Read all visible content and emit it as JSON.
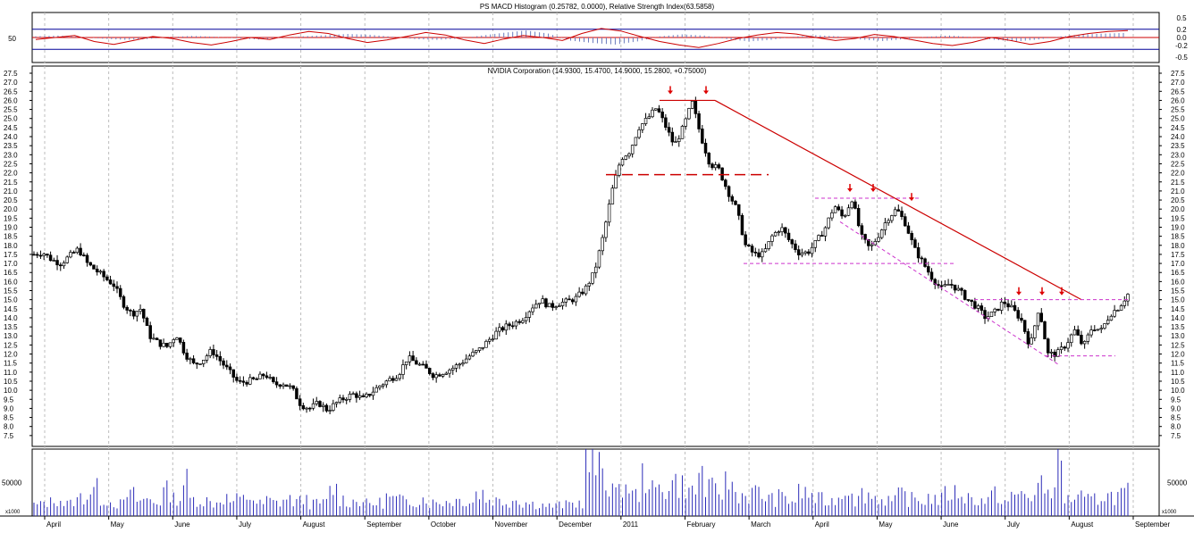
{
  "chart_data": [
    {
      "type": "line",
      "panel": "indicator",
      "title": "PS MACD Histogram (0.25782, 0.0000), Relative Strength Index(63.5858)",
      "left_label": "50",
      "right_ticks": [
        "0.5",
        "0.2",
        "0.0",
        "-0.2",
        "-0.5"
      ],
      "rsi_bands": [
        70,
        30
      ],
      "rsi_points": [
        46,
        50,
        54,
        42,
        36,
        44,
        52,
        48,
        40,
        35,
        42,
        50,
        46,
        55,
        62,
        58,
        48,
        40,
        45,
        52,
        60,
        55,
        45,
        38,
        47,
        54,
        50,
        44,
        58,
        68,
        63,
        52,
        42,
        35,
        30,
        38,
        48,
        55,
        60,
        57,
        50,
        44,
        48,
        56,
        52,
        45,
        38,
        34,
        40,
        50,
        44,
        36,
        42,
        52,
        58,
        62,
        64
      ],
      "histogram_points": [
        0.03,
        0.05,
        0.02,
        -0.03,
        -0.06,
        -0.04,
        0.01,
        0.04,
        0.02,
        -0.02,
        -0.05,
        -0.01,
        0.03,
        0.06,
        0.09,
        0.07,
        0.02,
        -0.04,
        -0.06,
        -0.03,
        0.05,
        0.12,
        0.18,
        0.1,
        -0.08,
        -0.14,
        -0.18,
        -0.1,
        0.03,
        0.08,
        0.05,
        -0.04,
        -0.1,
        -0.06,
        0.02,
        0.06,
        0.03,
        -0.05,
        -0.09,
        -0.04,
        0.02,
        0.05,
        0.01,
        -0.06,
        -0.1,
        -0.05,
        0.03,
        0.08,
        0.1,
        0.12
      ]
    },
    {
      "type": "candlestick",
      "panel": "price",
      "title": "NVIDIA Corporation (14.9300, 15.4700, 14.9000, 15.2800, +0.75000)",
      "ylim": [
        7.0,
        27.5
      ],
      "ticks_right": [
        "27.5",
        "27.0",
        "26.5",
        "26.0",
        "25.5",
        "25.0",
        "24.5",
        "24.0",
        "23.5",
        "23.0",
        "22.5",
        "22.0",
        "21.5",
        "21.0",
        "20.5",
        "20.0",
        "19.5",
        "19.0",
        "18.5",
        "18.0",
        "17.5",
        "17.0",
        "16.5",
        "16.0",
        "15.5",
        "15.0",
        "14.5",
        "14.0",
        "13.5",
        "13.0",
        "12.5",
        "12.0",
        "11.5",
        "11.0",
        "10.5",
        "10.0",
        "9.5",
        "9.0",
        "8.5",
        "8.0",
        "7.5"
      ],
      "ticks_left": [
        "27.5",
        "27.0",
        "26.5",
        "26.0",
        "25.5",
        "25.0",
        "24.5",
        "24.0",
        "23.5",
        "23.0",
        "22.5",
        "22.0",
        "21.5",
        "21.0",
        "20.5",
        "20.0",
        "19.5",
        "19.0",
        "18.5",
        "18.0",
        "17.5",
        "17.0",
        "16.5",
        "16.0",
        "15.5",
        "15.0",
        "14.5",
        "14.0",
        "13.5",
        "13.0",
        "12.5",
        "12.0",
        "11.5",
        "11.0",
        "10.5",
        "10.0",
        "9.5",
        "9.0",
        "8.5",
        "8.0",
        "7.5"
      ],
      "months": [
        "April",
        "May",
        "June",
        "July",
        "August",
        "September",
        "October",
        "November",
        "December",
        "2011",
        "February",
        "March",
        "April",
        "May",
        "June",
        "July",
        "August",
        "September"
      ],
      "close_path": [
        17.5,
        17.6,
        17.2,
        17.0,
        17.4,
        17.8,
        17.0,
        16.6,
        16.2,
        15.8,
        14.8,
        14.2,
        14.5,
        13.0,
        12.6,
        12.4,
        13.1,
        12.0,
        11.4,
        11.7,
        12.2,
        11.6,
        11.0,
        10.4,
        10.5,
        10.6,
        10.9,
        10.3,
        10.4,
        10.1,
        9.2,
        9.0,
        9.3,
        8.9,
        9.3,
        9.6,
        9.8,
        9.5,
        9.9,
        10.3,
        10.6,
        10.9,
        11.8,
        11.5,
        11.2,
        10.8,
        11.0,
        11.2,
        11.5,
        11.9,
        12.2,
        12.7,
        13.2,
        13.5,
        13.7,
        14.0,
        14.6,
        15.0,
        14.6,
        14.8,
        14.9,
        15.1,
        15.6,
        16.5,
        18.5,
        21.0,
        22.8,
        23.2,
        24.5,
        25.0,
        25.6,
        24.6,
        23.5,
        24.5,
        25.9,
        24.0,
        22.5,
        22.2,
        21.0,
        20.0,
        18.0,
        17.5,
        17.5,
        18.5,
        19.0,
        18.2,
        17.6,
        17.6,
        18.2,
        19.0,
        20.2,
        19.5,
        20.6,
        18.5,
        17.8,
        18.6,
        19.5,
        20.0,
        19.2,
        17.8,
        17.0,
        16.2,
        15.6,
        15.9,
        15.5,
        15.0,
        14.6,
        14.0,
        14.3,
        14.9,
        14.5,
        13.9,
        12.4,
        14.6,
        12.0,
        12.0,
        12.5,
        13.3,
        12.4,
        13.5,
        13.3,
        14.2,
        14.6,
        15.3
      ],
      "annotations": {
        "resistance_top": 26.0,
        "neckline_1": 21.9,
        "support_1": 17.0,
        "resistance_2": 20.6,
        "resistance_3": 15.0,
        "support_2": 11.9,
        "downtrend_start": 26.0,
        "downtrend_end": 15.0,
        "peak_markers": [
          26.0,
          26.0,
          20.6,
          20.6,
          20.1,
          14.9,
          14.9,
          14.9
        ]
      }
    },
    {
      "type": "bar",
      "panel": "volume",
      "label_left": "x1000",
      "label_right": "x1000",
      "ticks": [
        "50000"
      ],
      "ylim": [
        0,
        100000
      ],
      "values": [
        20000,
        25000,
        30000,
        22000,
        28000,
        35000,
        48000,
        30000,
        25000,
        22000,
        38000,
        28000,
        30000,
        26000,
        45000,
        32000,
        62000,
        30000,
        28000,
        24000,
        32000,
        26000,
        30000,
        34000,
        22000,
        28000,
        24000,
        30000,
        26000,
        32000,
        22000,
        24000,
        48000,
        30000,
        26000,
        28000,
        22000,
        24000,
        34000,
        30000,
        26000,
        28000,
        32000,
        24000,
        26000,
        28000,
        30000,
        26000,
        42000,
        30000,
        28000,
        26000,
        30000,
        24000,
        22000,
        20000,
        18000,
        20000,
        22000,
        24000,
        96000,
        82000,
        60000,
        40000,
        55000,
        38000,
        70000,
        45000,
        48000,
        62000,
        55000,
        44000,
        78000,
        48000,
        44000,
        60000,
        40000,
        38000,
        42000,
        35000,
        30000,
        34000,
        28000,
        42000,
        38000,
        30000,
        26000,
        34000,
        52000,
        30000,
        40000,
        34000,
        30000,
        26000,
        38000,
        30000,
        28000,
        34000,
        30000,
        40000,
        42000,
        34000,
        30000,
        28000,
        38000,
        26000,
        34000,
        40000,
        36000,
        52000,
        40000,
        92000,
        30000,
        34000,
        28000,
        30000,
        38000,
        36000,
        40000,
        42000
      ]
    }
  ]
}
